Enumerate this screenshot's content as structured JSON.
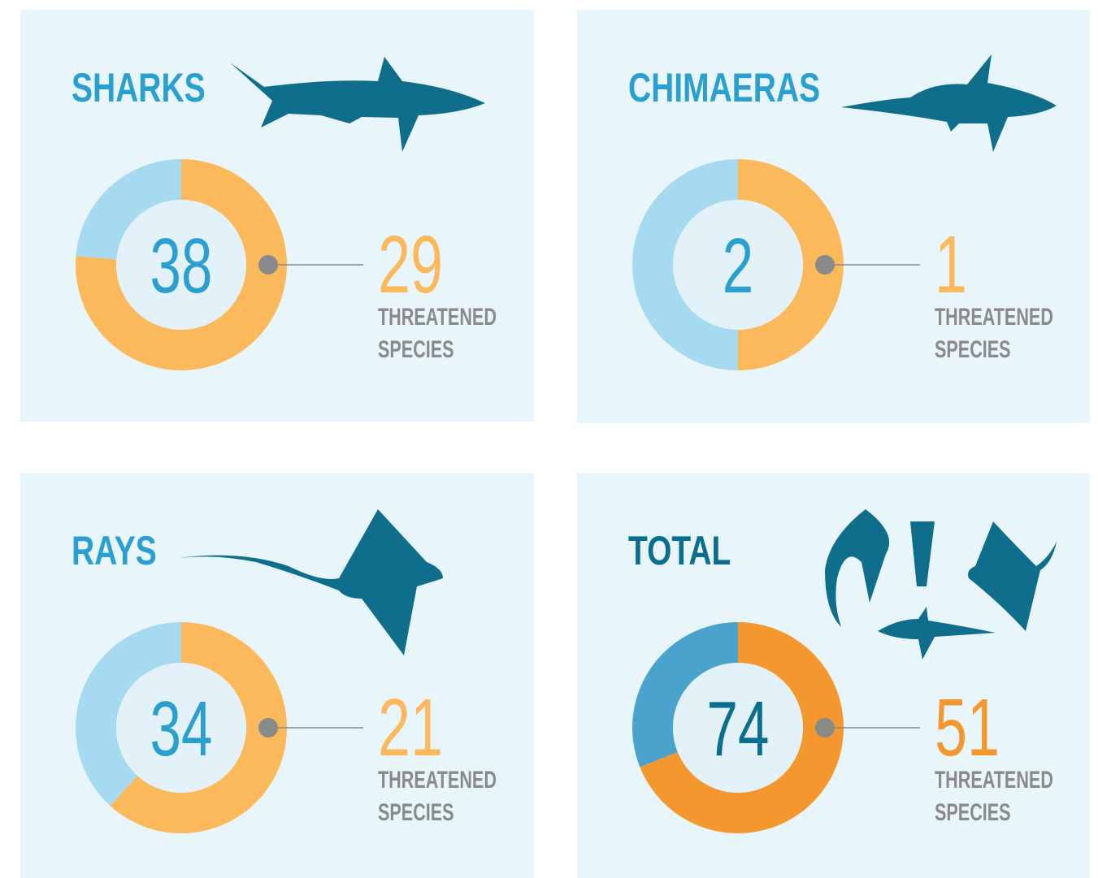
{
  "chart_data": [
    {
      "type": "donut",
      "title": "SHARKS",
      "total": 38,
      "threatened": 29,
      "label_lines": [
        "THREATENED",
        "SPECIES"
      ],
      "colors": {
        "threatened": "#fbb95c",
        "other": "#a5daf0",
        "text": "#2a9fd0"
      }
    },
    {
      "type": "donut",
      "title": "CHIMAERAS",
      "total": 2,
      "threatened": 1,
      "label_lines": [
        "THREATENED",
        "SPECIES"
      ],
      "colors": {
        "threatened": "#fbb95c",
        "other": "#a5daf0",
        "text": "#2a9fd0"
      }
    },
    {
      "type": "donut",
      "title": "RAYS",
      "total": 34,
      "threatened": 21,
      "label_lines": [
        "THREATENED",
        "SPECIES"
      ],
      "colors": {
        "threatened": "#fbb95c",
        "other": "#a5daf0",
        "text": "#2a9fd0"
      }
    },
    {
      "type": "donut",
      "title": "TOTAL",
      "total": 74,
      "threatened": 51,
      "label_lines": [
        "THREATENED",
        "SPECIES"
      ],
      "colors": {
        "threatened": "#f5972f",
        "other": "#4aa3cc",
        "text": "#0c6e8e"
      }
    }
  ]
}
